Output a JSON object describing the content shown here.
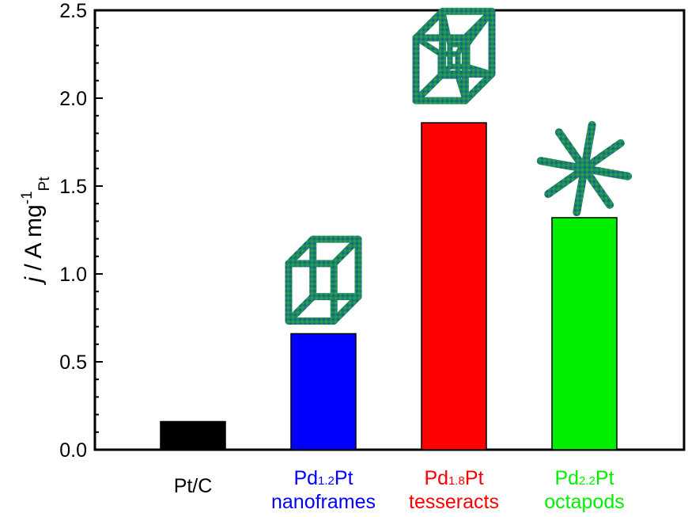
{
  "chart_data": {
    "type": "bar",
    "title": "",
    "xlabel": "",
    "ylabel": {
      "italic": "j",
      "main": " / A mg",
      "sup": "-1",
      "sub": "Pt"
    },
    "ylim": [
      0,
      2.5
    ],
    "yticks": [
      "0.0",
      "0.5",
      "1.0",
      "1.5",
      "2.0",
      "2.5"
    ],
    "grid": false,
    "categories": [
      {
        "line1": "Pt/C",
        "line2": "",
        "color": "#000000"
      },
      {
        "line1a": "Pd",
        "line1sub": "1.2",
        "line1b": "Pt",
        "line2": "nanoframes",
        "color": "#0000ff"
      },
      {
        "line1a": "Pd",
        "line1sub": "1.8",
        "line1b": "Pt",
        "line2": "tesseracts",
        "color": "#ff0000"
      },
      {
        "line1a": "Pd",
        "line1sub": "2.2",
        "line1b": "Pt",
        "line2": "octapods",
        "color": "#00ee00"
      }
    ],
    "values": [
      0.16,
      0.66,
      1.86,
      1.32
    ],
    "bar_colors": [
      "#000000",
      "#0000ff",
      "#ff0000",
      "#00ee00"
    ],
    "insets": [
      "cube-frame-icon",
      "tesseract-icon",
      "octapod-icon"
    ],
    "inset_colors": [
      "#1a4fb0",
      "#1f8a57",
      "#3a7fd0"
    ]
  }
}
